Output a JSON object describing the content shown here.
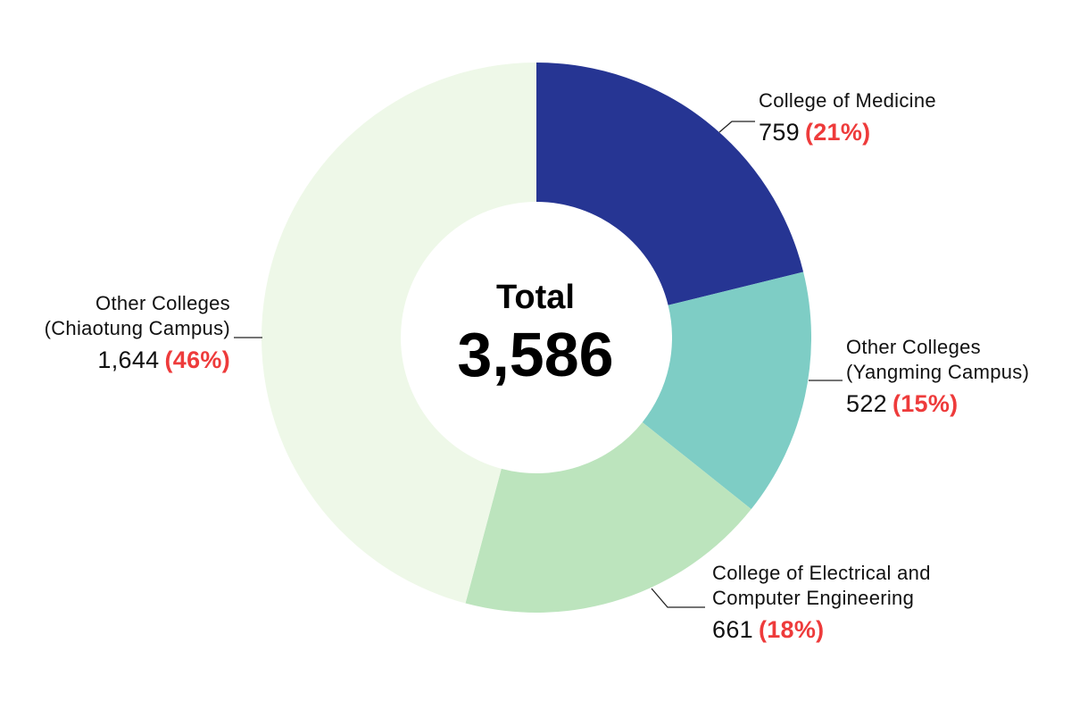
{
  "chart_data": {
    "type": "pie",
    "donut": true,
    "center_title": "Total",
    "center_value": "3,586",
    "total": 3586,
    "legend": "none",
    "colors": {
      "percent_text": "#ee3b3b",
      "connector": "#222222"
    },
    "slices": [
      {
        "id": "medicine",
        "name_lines": [
          "College of Medicine"
        ],
        "value": 759,
        "value_text": "759",
        "percent_text": "(21%)",
        "color": "#263593"
      },
      {
        "id": "yangming",
        "name_lines": [
          "Other Colleges",
          "(Yangming Campus)"
        ],
        "value": 522,
        "value_text": "522",
        "percent_text": "(15%)",
        "color": "#7ecdc5"
      },
      {
        "id": "ece",
        "name_lines": [
          "College of Electrical and",
          "Computer Engineering"
        ],
        "value": 661,
        "value_text": "661",
        "percent_text": "(18%)",
        "color": "#bce4bd"
      },
      {
        "id": "chiaotung",
        "name_lines": [
          "Other Colleges",
          "(Chiaotung Campus)"
        ],
        "value": 1644,
        "value_text": "1,644",
        "percent_text": "(46%)",
        "color": "#eef8e8"
      }
    ]
  }
}
